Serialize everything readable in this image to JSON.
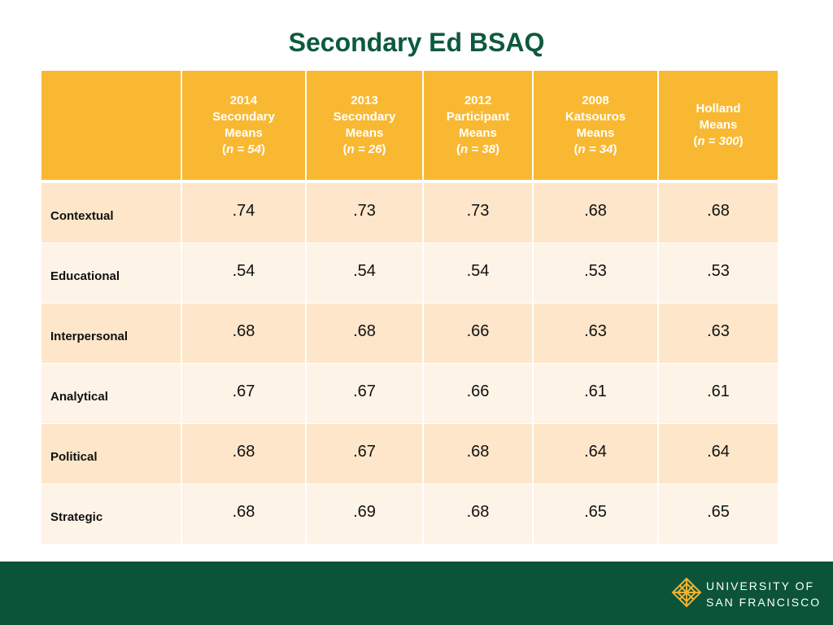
{
  "title": "Secondary Ed BSAQ",
  "table": {
    "headers": [
      {
        "lines": [],
        "n": ""
      },
      {
        "lines": [
          "2014",
          "Secondary",
          "Means"
        ],
        "n": "n = 54"
      },
      {
        "lines": [
          "2013",
          "Secondary",
          "Means"
        ],
        "n": "n = 26"
      },
      {
        "lines": [
          "2012",
          "Participant",
          "Means"
        ],
        "n": "n = 38"
      },
      {
        "lines": [
          "2008",
          "Katsouros",
          "Means"
        ],
        "n": "n = 34"
      },
      {
        "lines": [
          "Holland",
          "Means"
        ],
        "n": "n = 300"
      }
    ],
    "rows": [
      {
        "label": "Contextual",
        "values": [
          ".74",
          ".73",
          ".73",
          ".68",
          ".68"
        ]
      },
      {
        "label": "Educational",
        "values": [
          ".54",
          ".54",
          ".54",
          ".53",
          ".53"
        ]
      },
      {
        "label": "Interpersonal",
        "values": [
          ".68",
          ".68",
          ".66",
          ".63",
          ".63"
        ]
      },
      {
        "label": "Analytical",
        "values": [
          ".67",
          ".67",
          ".66",
          ".61",
          ".61"
        ]
      },
      {
        "label": "Political",
        "values": [
          ".68",
          ".67",
          ".68",
          ".64",
          ".64"
        ]
      },
      {
        "label": "Strategic",
        "values": [
          ".68",
          ".69",
          ".68",
          ".65",
          ".65"
        ]
      }
    ]
  },
  "footer": {
    "logo_icon": "usf-sunburst-logo-icon",
    "university_line1": "UNIVERSITY OF",
    "university_line2": "SAN FRANCISCO"
  },
  "colors": {
    "title_green": "#0d5a3c",
    "header_gold": "#f9b831",
    "row_odd": "#fde6c9",
    "row_even": "#fef3e7",
    "footer_green": "#0b543a",
    "logo_gold": "#f2b233"
  }
}
